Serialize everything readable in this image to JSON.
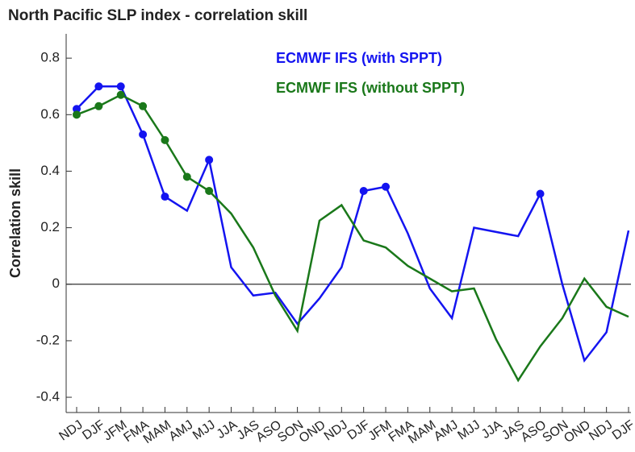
{
  "chart_data": {
    "type": "line",
    "title": "North Pacific SLP index - correlation skill",
    "y_label": "Correlation skill",
    "categories": [
      "NDJ",
      "DJF",
      "JFM",
      "FMA",
      "MAM",
      "AMJ",
      "MJJ",
      "JJA",
      "JAS",
      "ASO",
      "SON",
      "OND",
      "NDJ",
      "DJF",
      "JFM",
      "FMA",
      "MAM",
      "AMJ",
      "MJJ",
      "JJA",
      "JAS",
      "ASO",
      "SON",
      "OND",
      "NDJ",
      "DJF"
    ],
    "series": [
      {
        "name": "ECMWF IFS (with SPPT)",
        "color": "#1414f0",
        "values": [
          0.62,
          0.7,
          0.7,
          0.53,
          0.31,
          0.26,
          0.44,
          0.06,
          -0.04,
          -0.03,
          -0.14,
          -0.05,
          0.06,
          0.33,
          0.345,
          0.18,
          -0.015,
          -0.12,
          0.2,
          0.185,
          0.17,
          0.32,
          0.0,
          -0.27,
          -0.17,
          0.19
        ],
        "markers": [
          true,
          true,
          true,
          true,
          true,
          false,
          true,
          false,
          false,
          false,
          false,
          false,
          false,
          true,
          true,
          false,
          false,
          false,
          false,
          false,
          false,
          true,
          false,
          false,
          false,
          false
        ]
      },
      {
        "name": "ECMWF IFS (without SPPT)",
        "color": "#1a781a",
        "values": [
          0.6,
          0.63,
          0.67,
          0.63,
          0.51,
          0.38,
          0.33,
          0.25,
          0.13,
          -0.04,
          -0.165,
          0.225,
          0.28,
          0.155,
          0.13,
          0.065,
          0.02,
          -0.025,
          -0.015,
          -0.195,
          -0.34,
          -0.22,
          -0.12,
          0.02,
          -0.08,
          -0.115
        ],
        "markers": [
          true,
          true,
          true,
          true,
          true,
          true,
          true,
          false,
          false,
          false,
          false,
          false,
          false,
          false,
          false,
          false,
          false,
          false,
          false,
          false,
          false,
          false,
          false,
          false,
          false,
          false
        ]
      }
    ],
    "ylim": [
      -0.454,
      0.886
    ],
    "yticks": [
      -0.4,
      -0.2,
      0,
      0.2,
      0.4,
      0.6,
      0.8
    ],
    "zero_line": true
  }
}
